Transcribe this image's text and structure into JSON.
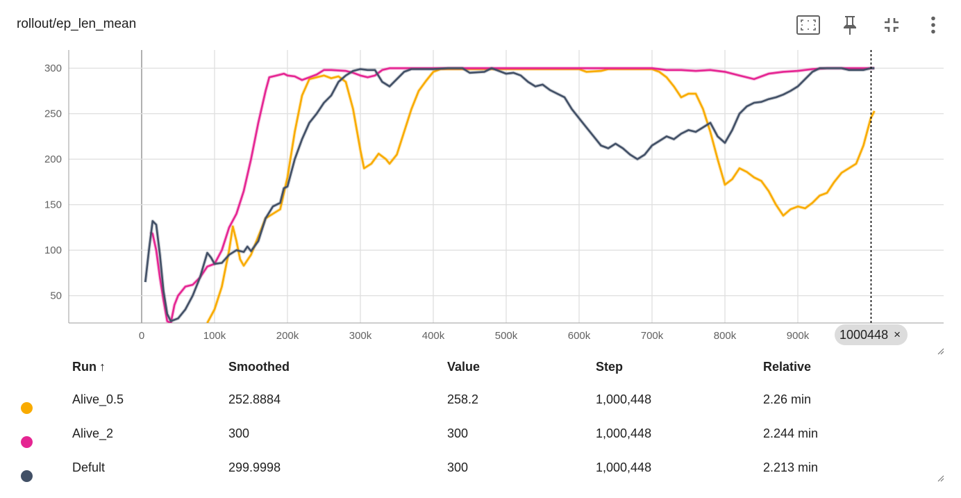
{
  "card": {
    "title": "rollout/ep_len_mean",
    "icons": [
      "fit-domain-icon",
      "pin-icon",
      "collapse-icon",
      "more-vert-icon"
    ]
  },
  "hover_step_label": "1000448",
  "hover_close": "×",
  "table": {
    "headers": {
      "run": "Run",
      "sort": "↑",
      "smoothed": "Smoothed",
      "value": "Value",
      "step": "Step",
      "relative": "Relative"
    },
    "rows": [
      {
        "color": "#f9ab00",
        "run": "Alive_0.5",
        "smoothed": "252.8884",
        "value": "258.2",
        "step": "1,000,448",
        "relative": "2.26 min"
      },
      {
        "color": "#e52592",
        "run": "Alive_2",
        "smoothed": "300",
        "value": "300",
        "step": "1,000,448",
        "relative": "2.244 min"
      },
      {
        "color": "#425066",
        "run": "Defult",
        "smoothed": "299.9998",
        "value": "300",
        "step": "1,000,448",
        "relative": "2.213 min"
      }
    ]
  },
  "chart_data": {
    "type": "line",
    "title": "rollout/ep_len_mean",
    "xlabel": "",
    "ylabel": "",
    "xlim": [
      -100000,
      1100000
    ],
    "ylim": [
      20,
      320
    ],
    "grid": true,
    "x_ticks": [
      0,
      100000,
      200000,
      300000,
      400000,
      500000,
      600000,
      700000,
      800000,
      900000
    ],
    "x_tick_labels": [
      "0",
      "100k",
      "200k",
      "300k",
      "400k",
      "500k",
      "600k",
      "700k",
      "800k",
      "900k"
    ],
    "y_ticks": [
      50,
      100,
      150,
      200,
      250,
      300
    ],
    "hover_x": 1000448,
    "series": [
      {
        "name": "Alive_0.5",
        "color": "#f9ab00",
        "points": [
          [
            90000,
            20
          ],
          [
            100000,
            35
          ],
          [
            110000,
            60
          ],
          [
            120000,
            100
          ],
          [
            125000,
            126
          ],
          [
            130000,
            110
          ],
          [
            135000,
            90
          ],
          [
            140000,
            83
          ],
          [
            150000,
            95
          ],
          [
            160000,
            115
          ],
          [
            170000,
            135
          ],
          [
            180000,
            140
          ],
          [
            190000,
            145
          ],
          [
            200000,
            180
          ],
          [
            210000,
            230
          ],
          [
            220000,
            270
          ],
          [
            230000,
            288
          ],
          [
            240000,
            290
          ],
          [
            250000,
            292
          ],
          [
            260000,
            289
          ],
          [
            270000,
            291
          ],
          [
            280000,
            285
          ],
          [
            290000,
            255
          ],
          [
            300000,
            210
          ],
          [
            305000,
            190
          ],
          [
            315000,
            195
          ],
          [
            325000,
            206
          ],
          [
            335000,
            200
          ],
          [
            340000,
            195
          ],
          [
            350000,
            205
          ],
          [
            360000,
            230
          ],
          [
            370000,
            255
          ],
          [
            380000,
            275
          ],
          [
            390000,
            286
          ],
          [
            400000,
            296
          ],
          [
            410000,
            299
          ],
          [
            500000,
            299
          ],
          [
            550000,
            299
          ],
          [
            600000,
            299
          ],
          [
            610000,
            296
          ],
          [
            630000,
            297
          ],
          [
            640000,
            299
          ],
          [
            700000,
            299
          ],
          [
            710000,
            296
          ],
          [
            720000,
            290
          ],
          [
            730000,
            280
          ],
          [
            740000,
            268
          ],
          [
            750000,
            272
          ],
          [
            760000,
            272
          ],
          [
            770000,
            255
          ],
          [
            780000,
            230
          ],
          [
            790000,
            200
          ],
          [
            800000,
            172
          ],
          [
            810000,
            178
          ],
          [
            820000,
            190
          ],
          [
            830000,
            186
          ],
          [
            840000,
            180
          ],
          [
            850000,
            176
          ],
          [
            860000,
            165
          ],
          [
            870000,
            150
          ],
          [
            880000,
            138
          ],
          [
            890000,
            145
          ],
          [
            900000,
            148
          ],
          [
            910000,
            146
          ],
          [
            920000,
            152
          ],
          [
            930000,
            160
          ],
          [
            940000,
            163
          ],
          [
            950000,
            175
          ],
          [
            960000,
            185
          ],
          [
            970000,
            190
          ],
          [
            980000,
            195
          ],
          [
            990000,
            215
          ],
          [
            1000000,
            245
          ],
          [
            1005000,
            253
          ]
        ]
      },
      {
        "name": "Alive_2",
        "color": "#e52592",
        "points": [
          [
            12000,
            120
          ],
          [
            15000,
            118
          ],
          [
            20000,
            100
          ],
          [
            25000,
            70
          ],
          [
            30000,
            45
          ],
          [
            35000,
            22
          ],
          [
            40000,
            20
          ],
          [
            45000,
            40
          ],
          [
            50000,
            50
          ],
          [
            60000,
            60
          ],
          [
            70000,
            62
          ],
          [
            80000,
            70
          ],
          [
            90000,
            82
          ],
          [
            100000,
            85
          ],
          [
            110000,
            100
          ],
          [
            120000,
            125
          ],
          [
            130000,
            140
          ],
          [
            140000,
            165
          ],
          [
            150000,
            200
          ],
          [
            160000,
            240
          ],
          [
            170000,
            275
          ],
          [
            175000,
            290
          ],
          [
            185000,
            292
          ],
          [
            195000,
            294
          ],
          [
            200000,
            292
          ],
          [
            210000,
            291
          ],
          [
            220000,
            287
          ],
          [
            230000,
            290
          ],
          [
            240000,
            293
          ],
          [
            250000,
            298
          ],
          [
            260000,
            298
          ],
          [
            280000,
            297
          ],
          [
            290000,
            295
          ],
          [
            300000,
            292
          ],
          [
            310000,
            290
          ],
          [
            320000,
            292
          ],
          [
            330000,
            298
          ],
          [
            340000,
            300
          ],
          [
            700000,
            300
          ],
          [
            720000,
            298
          ],
          [
            740000,
            298
          ],
          [
            760000,
            297
          ],
          [
            780000,
            298
          ],
          [
            800000,
            296
          ],
          [
            820000,
            292
          ],
          [
            840000,
            288
          ],
          [
            860000,
            294
          ],
          [
            880000,
            296
          ],
          [
            900000,
            297
          ],
          [
            920000,
            299
          ],
          [
            940000,
            300
          ],
          [
            1005000,
            300
          ]
        ]
      },
      {
        "name": "Defult",
        "color": "#425066",
        "points": [
          [
            5000,
            65
          ],
          [
            10000,
            100
          ],
          [
            15000,
            132
          ],
          [
            20000,
            128
          ],
          [
            25000,
            95
          ],
          [
            30000,
            55
          ],
          [
            35000,
            30
          ],
          [
            40000,
            22
          ],
          [
            50000,
            25
          ],
          [
            60000,
            35
          ],
          [
            70000,
            50
          ],
          [
            80000,
            70
          ],
          [
            90000,
            97
          ],
          [
            95000,
            92
          ],
          [
            100000,
            85
          ],
          [
            110000,
            86
          ],
          [
            120000,
            95
          ],
          [
            130000,
            100
          ],
          [
            140000,
            98
          ],
          [
            145000,
            104
          ],
          [
            150000,
            99
          ],
          [
            160000,
            110
          ],
          [
            170000,
            135
          ],
          [
            180000,
            148
          ],
          [
            190000,
            152
          ],
          [
            195000,
            168
          ],
          [
            200000,
            170
          ],
          [
            210000,
            200
          ],
          [
            220000,
            222
          ],
          [
            230000,
            240
          ],
          [
            240000,
            250
          ],
          [
            250000,
            262
          ],
          [
            260000,
            270
          ],
          [
            270000,
            285
          ],
          [
            280000,
            292
          ],
          [
            290000,
            297
          ],
          [
            300000,
            299
          ],
          [
            310000,
            298
          ],
          [
            320000,
            298
          ],
          [
            330000,
            285
          ],
          [
            340000,
            280
          ],
          [
            350000,
            288
          ],
          [
            360000,
            296
          ],
          [
            370000,
            299
          ],
          [
            400000,
            299
          ],
          [
            420000,
            300
          ],
          [
            440000,
            300
          ],
          [
            450000,
            295
          ],
          [
            470000,
            296
          ],
          [
            480000,
            300
          ],
          [
            490000,
            297
          ],
          [
            500000,
            294
          ],
          [
            510000,
            295
          ],
          [
            520000,
            292
          ],
          [
            530000,
            285
          ],
          [
            540000,
            280
          ],
          [
            550000,
            282
          ],
          [
            560000,
            276
          ],
          [
            570000,
            272
          ],
          [
            580000,
            268
          ],
          [
            590000,
            255
          ],
          [
            600000,
            245
          ],
          [
            610000,
            235
          ],
          [
            620000,
            225
          ],
          [
            630000,
            215
          ],
          [
            640000,
            212
          ],
          [
            650000,
            217
          ],
          [
            660000,
            212
          ],
          [
            670000,
            205
          ],
          [
            680000,
            200
          ],
          [
            690000,
            205
          ],
          [
            700000,
            215
          ],
          [
            710000,
            220
          ],
          [
            720000,
            225
          ],
          [
            730000,
            222
          ],
          [
            740000,
            228
          ],
          [
            750000,
            232
          ],
          [
            760000,
            230
          ],
          [
            770000,
            235
          ],
          [
            780000,
            240
          ],
          [
            790000,
            225
          ],
          [
            800000,
            218
          ],
          [
            810000,
            232
          ],
          [
            820000,
            250
          ],
          [
            830000,
            258
          ],
          [
            840000,
            262
          ],
          [
            850000,
            263
          ],
          [
            860000,
            266
          ],
          [
            870000,
            268
          ],
          [
            880000,
            271
          ],
          [
            890000,
            275
          ],
          [
            900000,
            280
          ],
          [
            910000,
            288
          ],
          [
            920000,
            296
          ],
          [
            930000,
            300
          ],
          [
            940000,
            300
          ],
          [
            960000,
            300
          ],
          [
            970000,
            298
          ],
          [
            990000,
            298
          ],
          [
            1000000,
            300
          ],
          [
            1005000,
            300
          ]
        ]
      }
    ]
  }
}
